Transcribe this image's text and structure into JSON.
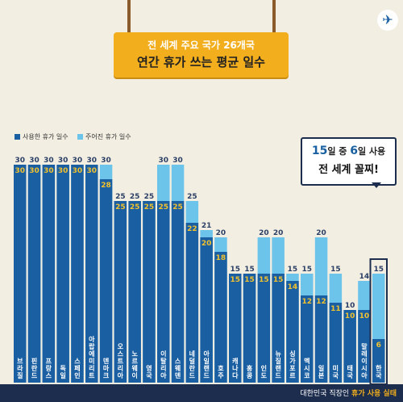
{
  "header": {
    "subtitle": "전 세계 주요 국가 26개국",
    "title": "연간 휴가 쓰는 평균 일수"
  },
  "legend": {
    "used": "사용한 휴가 일수",
    "given": "주어진 휴가 일수"
  },
  "callout": {
    "line1_a": "15",
    "line1_b": "일 중 ",
    "line1_c": "6",
    "line1_d": "일 사용",
    "line2": "전 세계 꼴찌!"
  },
  "footer": {
    "prefix": "대한민국 직장인 ",
    "highlight": "휴가 사용 실태"
  },
  "icon": "airplane-icon",
  "colors": {
    "background": "#f3eee2",
    "used": "#1a5fa1",
    "given": "#6cc4ea",
    "sign": "#f2ae1c",
    "navy": "#1c2d4d",
    "used_value_label": "#f2c12e"
  },
  "chart_data": {
    "type": "bar",
    "categories": [
      "브라질",
      "핀란드",
      "프랑스",
      "독일",
      "스페인",
      "아랍에미리트",
      "덴마크",
      "오스트리아",
      "노르웨이",
      "영국",
      "이탈리아",
      "스웨덴",
      "네덜란드",
      "아일랜드",
      "호주",
      "캐나다",
      "홍콩",
      "인도",
      "뉴질랜드",
      "싱가포르",
      "멕시코",
      "일본",
      "미국",
      "태국",
      "말레이시아",
      "한국"
    ],
    "series": [
      {
        "name": "사용한 휴가 일수",
        "values": [
          30,
          30,
          30,
          30,
          30,
          30,
          28,
          25,
          25,
          25,
          25,
          25,
          22,
          20,
          18,
          15,
          15,
          15,
          15,
          14,
          12,
          12,
          11,
          10,
          10,
          6
        ]
      },
      {
        "name": "주어진 휴가 일수",
        "values": [
          30,
          30,
          30,
          30,
          30,
          30,
          30,
          25,
          25,
          25,
          30,
          30,
          25,
          21,
          20,
          15,
          15,
          20,
          20,
          15,
          15,
          20,
          15,
          10,
          14,
          15
        ]
      }
    ],
    "ylim": [
      0,
      30
    ],
    "grid": false,
    "legend_position": "top-left",
    "highlight_category": "한국"
  }
}
